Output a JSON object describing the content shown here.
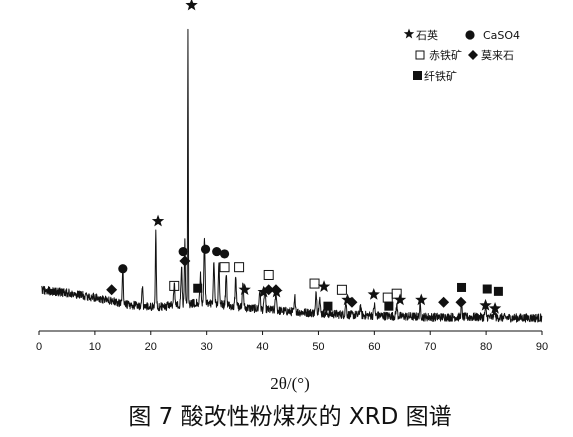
{
  "chart_data": {
    "type": "line",
    "xlabel": "2θ/(°)",
    "xlim": [
      0,
      90
    ],
    "x_ticks": [
      0,
      10,
      20,
      30,
      40,
      50,
      60,
      70,
      80,
      90
    ],
    "y_axis_visible": false,
    "grid": false,
    "legend_position": "top-right",
    "series": [
      {
        "type": "xrd-pattern",
        "color": "#111111",
        "baseline": [
          [
            0.5,
            0.4
          ],
          [
            5,
            0.36
          ],
          [
            10,
            0.3
          ],
          [
            13,
            0.25
          ],
          [
            16,
            0.21
          ],
          [
            18,
            0.19
          ],
          [
            20,
            0.18
          ],
          [
            23,
            0.19
          ],
          [
            25,
            0.21
          ],
          [
            28,
            0.23
          ],
          [
            31,
            0.22
          ],
          [
            34,
            0.2
          ],
          [
            37,
            0.17
          ],
          [
            40,
            0.15
          ],
          [
            45,
            0.12
          ],
          [
            50,
            0.1
          ],
          [
            55,
            0.08
          ],
          [
            60,
            0.07
          ],
          [
            65,
            0.06
          ],
          [
            70,
            0.05
          ],
          [
            75,
            0.05
          ],
          [
            80,
            0.05
          ],
          [
            85,
            0.04
          ],
          [
            90,
            0.04
          ]
        ],
        "peaks": [
          {
            "x": 15.0,
            "y": 0.48,
            "w": 0.12
          },
          {
            "x": 18.5,
            "y": 0.24,
            "w": 0.12
          },
          {
            "x": 20.9,
            "y": 0.95,
            "w": 0.12
          },
          {
            "x": 24.2,
            "y": 0.27,
            "w": 0.15
          },
          {
            "x": 25.5,
            "y": 0.48,
            "w": 0.15
          },
          {
            "x": 26.1,
            "y": 0.8,
            "w": 0.12
          },
          {
            "x": 26.65,
            "y": 3.55,
            "w": 0.08
          },
          {
            "x": 28.9,
            "y": 0.35,
            "w": 0.15
          },
          {
            "x": 29.6,
            "y": 0.85,
            "w": 0.15
          },
          {
            "x": 31.3,
            "y": 0.55,
            "w": 0.15
          },
          {
            "x": 32.2,
            "y": 0.48,
            "w": 0.15
          },
          {
            "x": 33.5,
            "y": 0.4,
            "w": 0.15
          },
          {
            "x": 35.2,
            "y": 0.38,
            "w": 0.15
          },
          {
            "x": 36.5,
            "y": 0.3,
            "w": 0.15
          },
          {
            "x": 39.5,
            "y": 0.24,
            "w": 0.15
          },
          {
            "x": 40.4,
            "y": 0.28,
            "w": 0.15
          },
          {
            "x": 42.4,
            "y": 0.26,
            "w": 0.15
          },
          {
            "x": 45.8,
            "y": 0.18,
            "w": 0.15
          },
          {
            "x": 49.6,
            "y": 0.26,
            "w": 0.15
          },
          {
            "x": 50.2,
            "y": 0.22,
            "w": 0.15
          },
          {
            "x": 54.9,
            "y": 0.16,
            "w": 0.15
          },
          {
            "x": 57.5,
            "y": 0.12,
            "w": 0.15
          },
          {
            "x": 60.0,
            "y": 0.14,
            "w": 0.15
          },
          {
            "x": 64.0,
            "y": 0.14,
            "w": 0.15
          },
          {
            "x": 68.2,
            "y": 0.14,
            "w": 0.15
          },
          {
            "x": 75.6,
            "y": 0.13,
            "w": 0.15
          },
          {
            "x": 79.9,
            "y": 0.12,
            "w": 0.15
          },
          {
            "x": 81.5,
            "y": 0.1,
            "w": 0.15
          }
        ]
      }
    ],
    "markers": [
      {
        "symbol": "star",
        "x": 27.3,
        "y": 4.05
      },
      {
        "symbol": "star",
        "x": 21.3,
        "y": 1.28
      },
      {
        "symbol": "star",
        "x": 36.8,
        "y": 0.4
      },
      {
        "symbol": "star",
        "x": 40.2,
        "y": 0.37
      },
      {
        "symbol": "star",
        "x": 42.5,
        "y": 0.37
      },
      {
        "symbol": "star",
        "x": 51.0,
        "y": 0.44
      },
      {
        "symbol": "star",
        "x": 55.2,
        "y": 0.27
      },
      {
        "symbol": "star",
        "x": 59.9,
        "y": 0.34
      },
      {
        "symbol": "star",
        "x": 64.6,
        "y": 0.27
      },
      {
        "symbol": "star",
        "x": 68.4,
        "y": 0.27
      },
      {
        "symbol": "star",
        "x": 79.9,
        "y": 0.2
      },
      {
        "symbol": "star",
        "x": 81.6,
        "y": 0.16
      },
      {
        "symbol": "circle",
        "x": 15.0,
        "y": 0.67
      },
      {
        "symbol": "circle",
        "x": 25.8,
        "y": 0.89
      },
      {
        "symbol": "circle",
        "x": 29.8,
        "y": 0.92
      },
      {
        "symbol": "circle",
        "x": 31.8,
        "y": 0.89
      },
      {
        "symbol": "circle",
        "x": 33.2,
        "y": 0.86
      },
      {
        "symbol": "square-open",
        "x": 24.2,
        "y": 0.45
      },
      {
        "symbol": "square-open",
        "x": 33.2,
        "y": 0.69
      },
      {
        "symbol": "square-open",
        "x": 35.8,
        "y": 0.69
      },
      {
        "symbol": "square-open",
        "x": 41.1,
        "y": 0.59
      },
      {
        "symbol": "square-open",
        "x": 49.3,
        "y": 0.48
      },
      {
        "symbol": "square-open",
        "x": 54.2,
        "y": 0.4
      },
      {
        "symbol": "square-open",
        "x": 62.4,
        "y": 0.3
      },
      {
        "symbol": "square-open",
        "x": 64.0,
        "y": 0.35
      },
      {
        "symbol": "diamond",
        "x": 13.0,
        "y": 0.4
      },
      {
        "symbol": "diamond",
        "x": 26.1,
        "y": 0.77
      },
      {
        "symbol": "diamond",
        "x": 41.1,
        "y": 0.4
      },
      {
        "symbol": "diamond",
        "x": 42.4,
        "y": 0.4
      },
      {
        "symbol": "diamond",
        "x": 56.0,
        "y": 0.24
      },
      {
        "symbol": "diamond",
        "x": 72.4,
        "y": 0.24
      },
      {
        "symbol": "diamond",
        "x": 75.5,
        "y": 0.24
      },
      {
        "symbol": "square-filled",
        "x": 28.4,
        "y": 0.42
      },
      {
        "symbol": "square-filled",
        "x": 51.7,
        "y": 0.19
      },
      {
        "symbol": "square-filled",
        "x": 62.6,
        "y": 0.19
      },
      {
        "symbol": "square-filled",
        "x": 75.6,
        "y": 0.43
      },
      {
        "symbol": "square-filled",
        "x": 80.2,
        "y": 0.41
      },
      {
        "symbol": "square-filled",
        "x": 82.2,
        "y": 0.38
      }
    ],
    "legend": {
      "entries": [
        {
          "symbol": "star",
          "label": "石英"
        },
        {
          "symbol": "circle",
          "label": "CaSO4"
        },
        {
          "symbol": "square-open",
          "label": "赤铁矿"
        },
        {
          "symbol": "diamond",
          "label": "莫来石"
        },
        {
          "symbol": "square-filled",
          "label": "纤铁矿"
        }
      ]
    }
  },
  "caption": "图 7   酸改性粉煤灰的 XRD 图谱"
}
